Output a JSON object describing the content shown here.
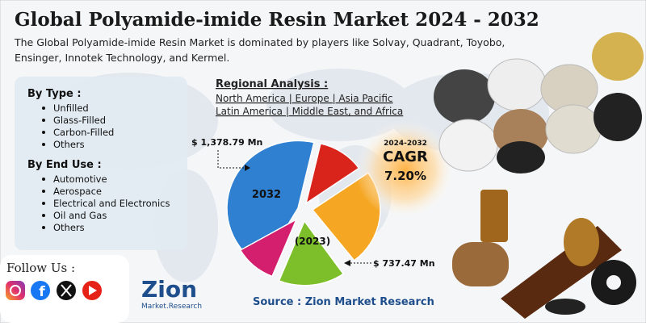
{
  "header": {
    "title": "Global Polyamide-imide Resin Market 2024 - 2032",
    "subtitle_lines": [
      "The Global Polyamide-imide Resin Market is dominated by players like Solvay, Quadrant, Toyobo,",
      "Ensinger, Innotek Technology, and Kermel."
    ]
  },
  "segments": {
    "by_type": {
      "heading": "By Type :",
      "items": [
        "Unfilled",
        "Glass-Filled",
        "Carbon-Filled",
        "Others"
      ]
    },
    "by_end_use": {
      "heading": "By End Use :",
      "items": [
        "Automotive",
        "Aerospace",
        "Electrical and Electronics",
        "Oil and Gas",
        "Others"
      ]
    }
  },
  "regional": {
    "heading": "Regional Analysis :",
    "lines": [
      "North America | Europe | Asia Pacific",
      "Latin America | Middle East, and Africa"
    ]
  },
  "market": {
    "value_2032": "$ 1,378.79 Mn",
    "label_2032": "2032",
    "label_2023": "(2023)",
    "value_2023": "$ 737.47 Mn"
  },
  "cagr": {
    "period": "2024-2032",
    "label": "CAGR",
    "value": "7.20%"
  },
  "footer": {
    "follow": "Follow Us :",
    "logo_main": "Zion",
    "logo_sub": "Market.Research",
    "source": "Source : Zion Market Research"
  }
}
